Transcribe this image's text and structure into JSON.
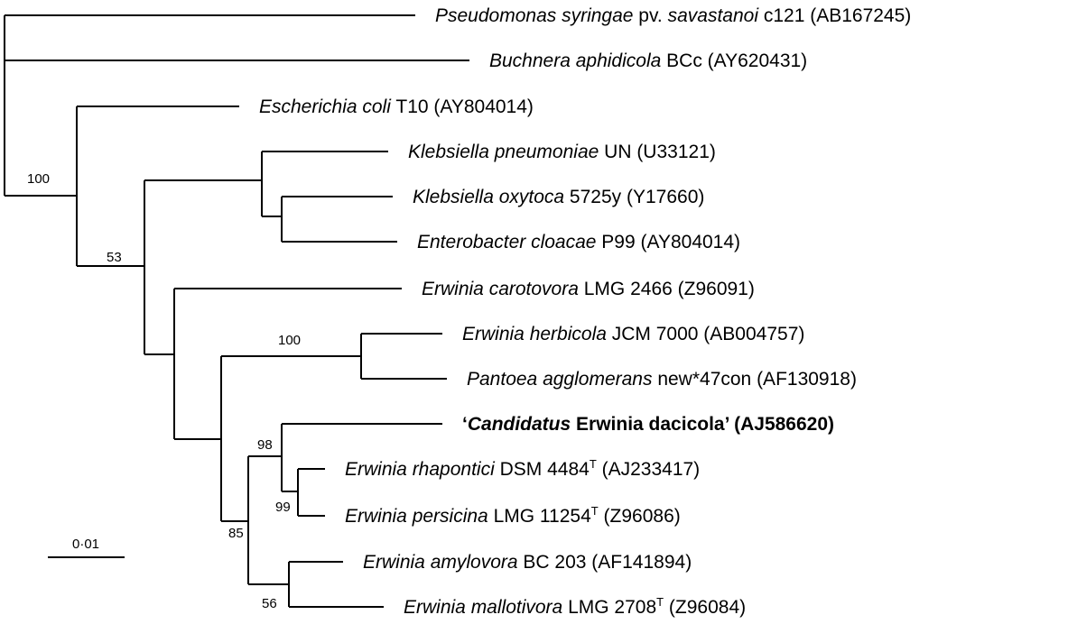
{
  "taxa": [
    {
      "id": "t1",
      "genus": "Pseudomonas syringae",
      "rest": " pv. ",
      "rest_italic": "savastanoi",
      "strain": " c121",
      "sup": "",
      "acc": " (AB167245)",
      "bold": false,
      "candidatus": false
    },
    {
      "id": "t2",
      "genus": "Buchnera aphidicola",
      "rest": "",
      "rest_italic": "",
      "strain": " BCc",
      "sup": "",
      "acc": " (AY620431)",
      "bold": false,
      "candidatus": false
    },
    {
      "id": "t3",
      "genus": "Escherichia coli",
      "rest": "",
      "rest_italic": "",
      "strain": " T10",
      "sup": "",
      "acc": " (AY804014)",
      "bold": false,
      "candidatus": false
    },
    {
      "id": "t4",
      "genus": "Klebsiella pneumoniae",
      "rest": "",
      "rest_italic": "",
      "strain": " UN",
      "sup": "",
      "acc": " (U33121)",
      "bold": false,
      "candidatus": false
    },
    {
      "id": "t5",
      "genus": "Klebsiella oxytoca",
      "rest": "",
      "rest_italic": "",
      "strain": " 5725y",
      "sup": "",
      "acc": " (Y17660)",
      "bold": false,
      "candidatus": false
    },
    {
      "id": "t6",
      "genus": "Enterobacter cloacae",
      "rest": "",
      "rest_italic": "",
      "strain": " P99",
      "sup": "",
      "acc": " (AY804014)",
      "bold": false,
      "candidatus": false
    },
    {
      "id": "t7",
      "genus": "Erwinia carotovora",
      "rest": "",
      "rest_italic": "",
      "strain": " LMG 2466",
      "sup": "",
      "acc": " (Z96091)",
      "bold": false,
      "candidatus": false
    },
    {
      "id": "t8",
      "genus": "Erwinia herbicola",
      "rest": "",
      "rest_italic": "",
      "strain": " JCM 7000",
      "sup": "",
      "acc": " (AB004757)",
      "bold": false,
      "candidatus": false
    },
    {
      "id": "t9",
      "genus": "Pantoea agglomerans",
      "rest": "",
      "rest_italic": "",
      "strain": " new*47con",
      "sup": "",
      "acc": " (AF130918)",
      "bold": false,
      "candidatus": false
    },
    {
      "id": "t10",
      "genus": "Candidatus",
      "rest": " Erwinia dacicola’",
      "rest_italic": "",
      "strain": "",
      "sup": "",
      "acc": " (AJ586620)",
      "bold": true,
      "candidatus": true,
      "open_quote": "‘"
    },
    {
      "id": "t11",
      "genus": "Erwinia rhapontici",
      "rest": "",
      "rest_italic": "",
      "strain": " DSM 4484",
      "sup": "T",
      "acc": " (AJ233417)",
      "bold": false,
      "candidatus": false
    },
    {
      "id": "t12",
      "genus": "Erwinia persicina",
      "rest": "",
      "rest_italic": "",
      "strain": " LMG 11254",
      "sup": "T",
      "acc": " (Z96086)",
      "bold": false,
      "candidatus": false
    },
    {
      "id": "t13",
      "genus": "Erwinia amylovora",
      "rest": "",
      "rest_italic": "",
      "strain": " BC 203",
      "sup": "",
      "acc": " (AF141894)",
      "bold": false,
      "candidatus": false
    },
    {
      "id": "t14",
      "genus": "Erwinia mallotivora",
      "rest": "",
      "rest_italic": "",
      "strain": " LMG 2708",
      "sup": "T",
      "acc": " (Z96084)",
      "bold": false,
      "candidatus": false
    }
  ],
  "bootstraps": [
    {
      "id": "b1",
      "value": "100"
    },
    {
      "id": "b2",
      "value": "53"
    },
    {
      "id": "b3",
      "value": "100"
    },
    {
      "id": "b4",
      "value": "98"
    },
    {
      "id": "b5",
      "value": "99"
    },
    {
      "id": "b6",
      "value": "85"
    },
    {
      "id": "b7",
      "value": "56"
    }
  ],
  "scale_bar": {
    "label": "0·01"
  }
}
